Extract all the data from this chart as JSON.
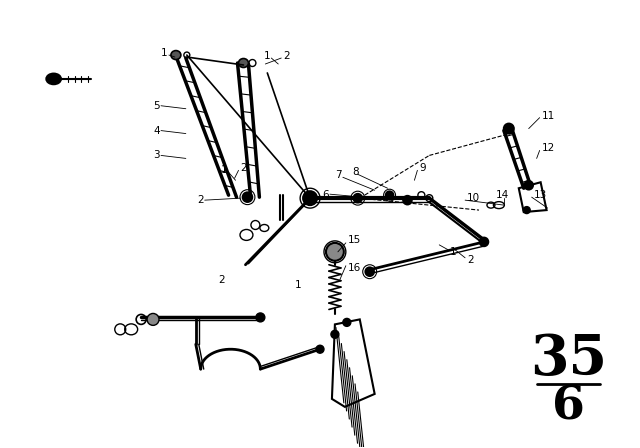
{
  "bg_color": "#ffffff",
  "line_color": "#000000",
  "title_number": "35",
  "title_sub": "6",
  "figsize": [
    6.4,
    4.48
  ],
  "dpi": 100
}
